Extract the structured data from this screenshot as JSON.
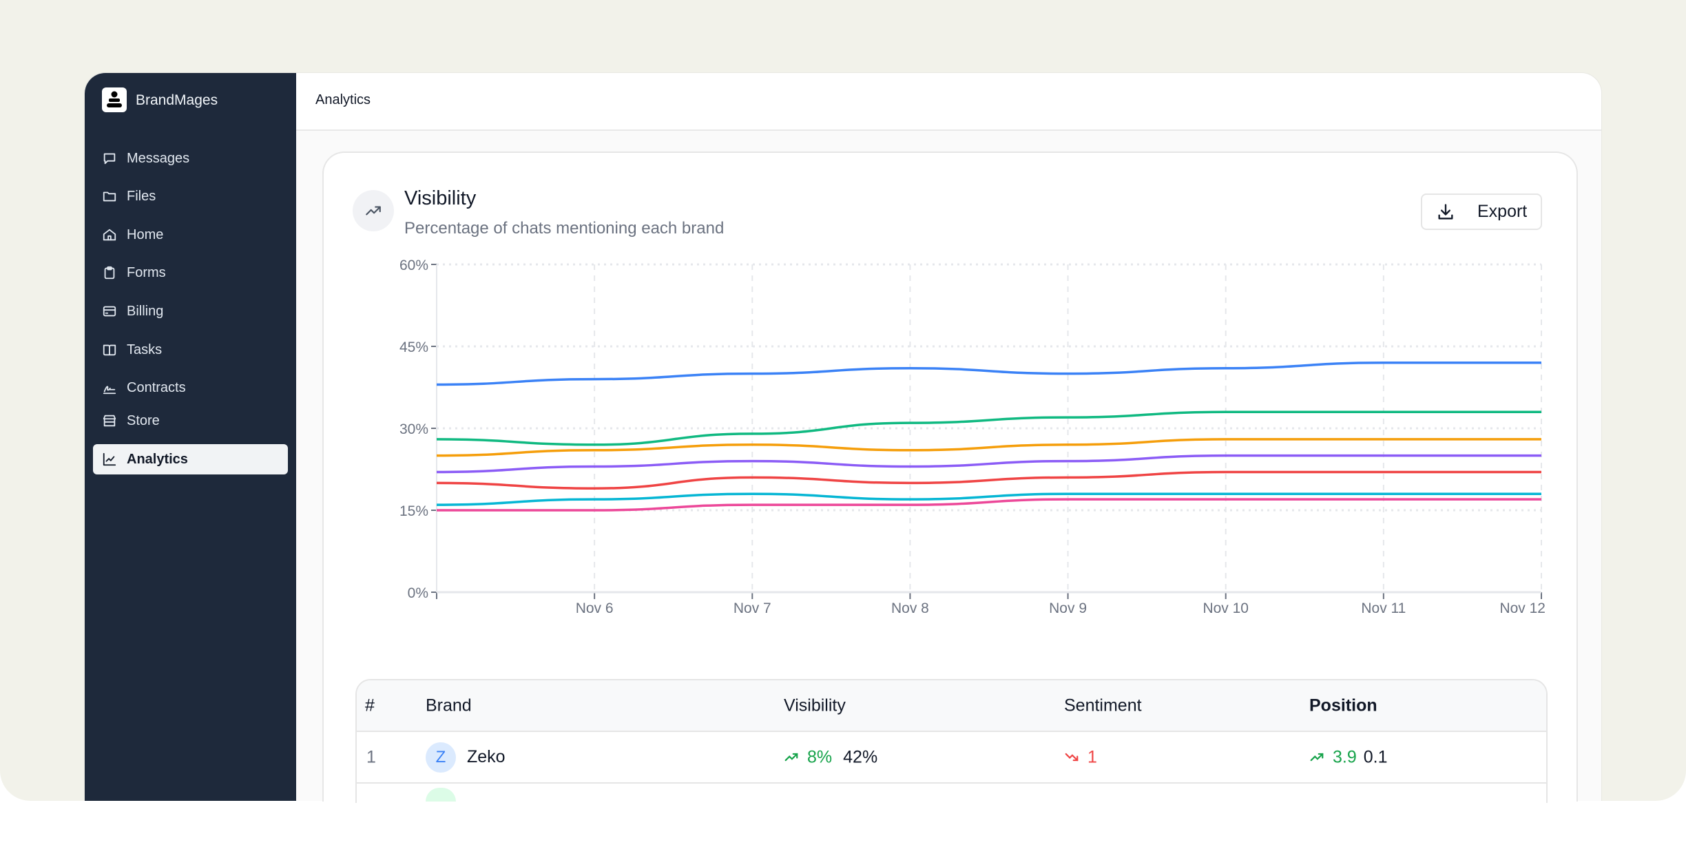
{
  "app": {
    "name": "BrandMages"
  },
  "sidebar": {
    "items": [
      {
        "label": "Messages",
        "icon": "message-square-icon"
      },
      {
        "label": "Files",
        "icon": "folder-icon"
      },
      {
        "label": "Home",
        "icon": "home-icon"
      },
      {
        "label": "Forms",
        "icon": "clipboard-icon"
      },
      {
        "label": "Billing",
        "icon": "credit-card-icon"
      },
      {
        "label": "Tasks",
        "icon": "book-open-icon"
      },
      {
        "label": "Contracts",
        "icon": "signature-icon"
      },
      {
        "label": "Store",
        "icon": "store-icon"
      },
      {
        "label": "Analytics",
        "icon": "line-chart-icon",
        "active": true
      }
    ]
  },
  "header": {
    "title": "Analytics"
  },
  "card": {
    "title": "Visibility",
    "subtitle": "Percentage of chats mentioning each brand",
    "export_label": "Export"
  },
  "chart_data": {
    "type": "line",
    "x": [
      "",
      "Nov 6",
      "Nov 7",
      "Nov 8",
      "Nov 9",
      "Nov 10",
      "Nov 11",
      "Nov 12"
    ],
    "yticks": [
      "0%",
      "15%",
      "30%",
      "45%",
      "60%"
    ],
    "ylim": [
      0,
      60
    ],
    "grid": true,
    "series": [
      {
        "color": "#3b82f6",
        "values": [
          38,
          39,
          40,
          41,
          40,
          41,
          42,
          42
        ]
      },
      {
        "color": "#10b981",
        "values": [
          28,
          27,
          29,
          31,
          32,
          33,
          33,
          33
        ]
      },
      {
        "color": "#f59e0b",
        "values": [
          25,
          26,
          27,
          26,
          27,
          28,
          28,
          28
        ]
      },
      {
        "color": "#8b5cf6",
        "values": [
          22,
          23,
          24,
          23,
          24,
          25,
          25,
          25
        ]
      },
      {
        "color": "#ef4444",
        "values": [
          20,
          19,
          21,
          20,
          21,
          22,
          22,
          22
        ]
      },
      {
        "color": "#06b6d4",
        "values": [
          16,
          17,
          18,
          17,
          18,
          18,
          18,
          18
        ]
      },
      {
        "color": "#ec4899",
        "values": [
          15,
          15,
          16,
          16,
          17,
          17,
          17,
          17
        ]
      }
    ]
  },
  "table": {
    "headers": [
      "#",
      "Brand",
      "Visibility",
      "Sentiment",
      "Position"
    ],
    "rows": [
      {
        "rank": "1",
        "initial": "Z",
        "brand": "Zeko",
        "vis_change": "8%",
        "vis_trend": "up",
        "visibility": "42%",
        "sent_change": "1",
        "sent_trend": "down",
        "pos_change": "3.9",
        "pos_trend": "up",
        "position": "0.1"
      }
    ]
  }
}
